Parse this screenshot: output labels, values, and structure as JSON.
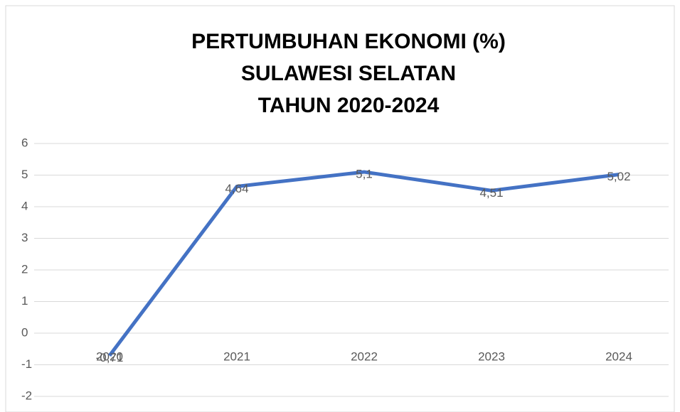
{
  "chart_data": {
    "type": "line",
    "title": [
      "PERTUMBUHAN EKONOMI (%)",
      "SULAWESI SELATAN",
      "TAHUN 2020-2024"
    ],
    "categories": [
      "2020",
      "2021",
      "2022",
      "2023",
      "2024"
    ],
    "series": [
      {
        "name": null,
        "color": "#4472c4",
        "values": [
          -0.71,
          4.64,
          5.1,
          4.51,
          5.02
        ],
        "value_labels": [
          "-0,71",
          "4,64",
          "5,1",
          "4,51",
          "5,02"
        ]
      }
    ],
    "ylim": [
      -2,
      6
    ],
    "yticks": [
      -2,
      -1,
      0,
      1,
      2,
      3,
      4,
      5,
      6
    ],
    "grid": true
  }
}
